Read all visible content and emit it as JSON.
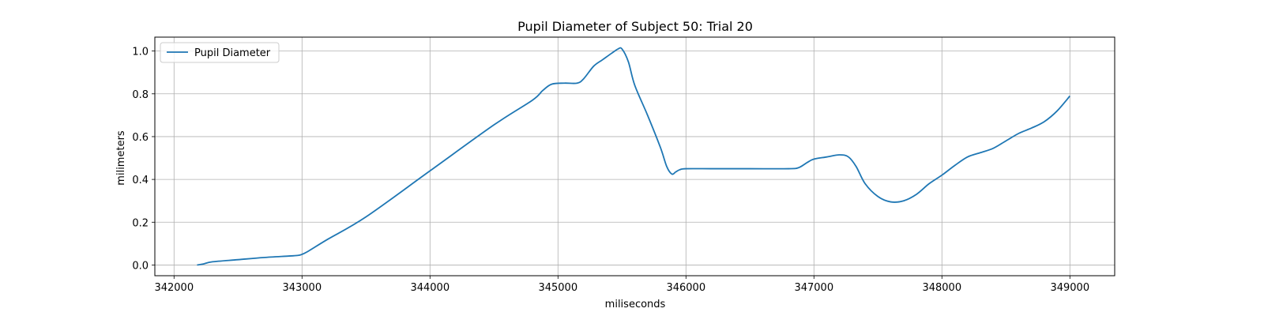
{
  "chart_data": {
    "type": "line",
    "title": "Pupil Diameter of Subject 50: Trial 20",
    "xlabel": "miliseconds",
    "ylabel": "milimeters",
    "xlim": [
      341850,
      349350
    ],
    "ylim": [
      -0.05,
      1.065
    ],
    "xticks": [
      342000,
      343000,
      344000,
      345000,
      346000,
      347000,
      348000,
      349000
    ],
    "yticks": [
      0.0,
      0.2,
      0.4,
      0.6,
      0.8,
      1.0
    ],
    "xtick_labels": [
      "342000",
      "343000",
      "344000",
      "345000",
      "346000",
      "347000",
      "348000",
      "349000"
    ],
    "ytick_labels": [
      "0.0",
      "0.2",
      "0.4",
      "0.6",
      "0.8",
      "1.0"
    ],
    "grid": true,
    "legend_position": "upper-left",
    "series": [
      {
        "name": "Pupil Diameter",
        "color": "#1f77b4",
        "x": [
          342180,
          342230,
          342300,
          342500,
          342700,
          342900,
          342970,
          343000,
          343050,
          343200,
          343500,
          344000,
          344500,
          344800,
          344880,
          344950,
          345050,
          345150,
          345200,
          345280,
          345350,
          345420,
          345470,
          345500,
          345550,
          345600,
          345700,
          345800,
          345850,
          345890,
          345920,
          345950,
          346000,
          346200,
          346500,
          346800,
          346880,
          346950,
          347000,
          347100,
          347200,
          347270,
          347330,
          347400,
          347500,
          347600,
          347700,
          347800,
          347900,
          348000,
          348100,
          348200,
          348300,
          348400,
          348500,
          348600,
          348700,
          348800,
          348900,
          349000
        ],
        "y": [
          0.0,
          0.005,
          0.015,
          0.025,
          0.035,
          0.042,
          0.045,
          0.05,
          0.065,
          0.12,
          0.225,
          0.44,
          0.655,
          0.77,
          0.815,
          0.845,
          0.85,
          0.85,
          0.87,
          0.93,
          0.96,
          0.99,
          1.01,
          1.01,
          0.95,
          0.84,
          0.7,
          0.55,
          0.46,
          0.425,
          0.435,
          0.445,
          0.45,
          0.45,
          0.45,
          0.45,
          0.455,
          0.48,
          0.495,
          0.505,
          0.515,
          0.505,
          0.46,
          0.38,
          0.32,
          0.295,
          0.3,
          0.33,
          0.38,
          0.42,
          0.465,
          0.505,
          0.525,
          0.545,
          0.58,
          0.615,
          0.64,
          0.67,
          0.72,
          0.79
        ]
      }
    ]
  }
}
